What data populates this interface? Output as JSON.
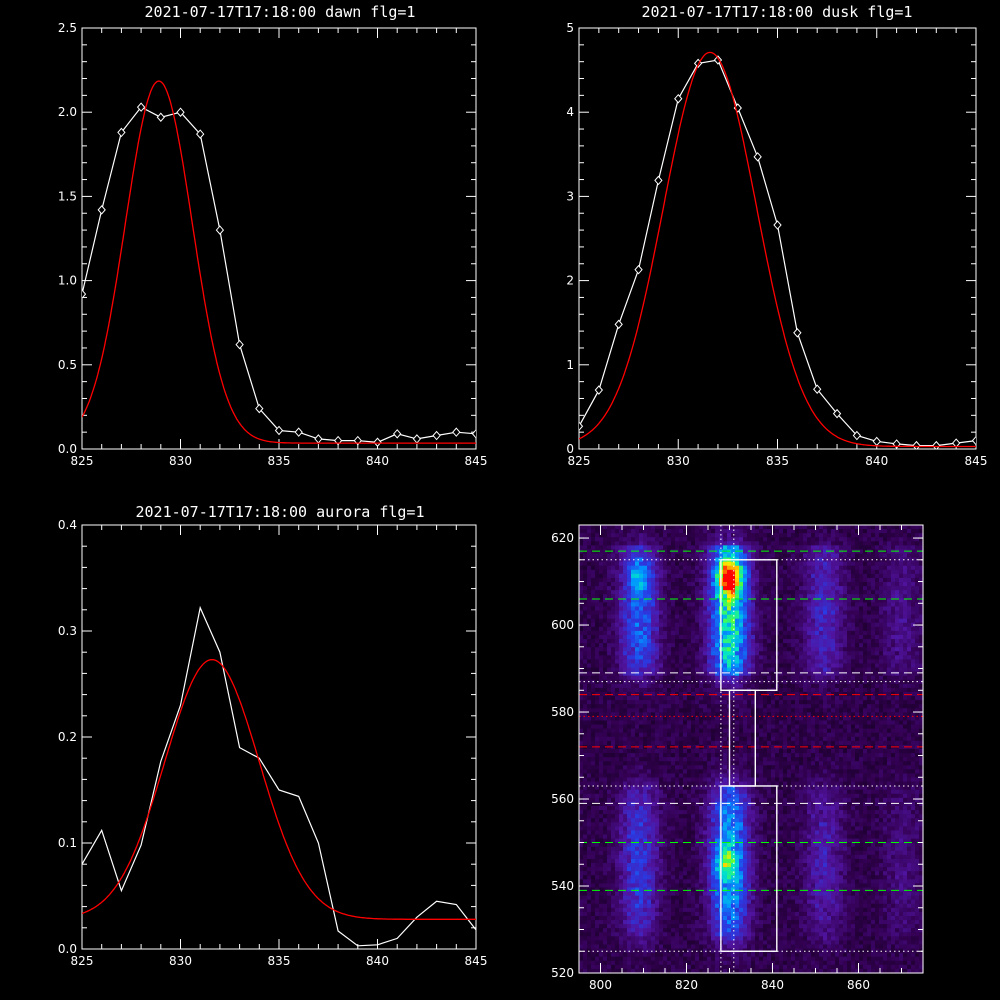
{
  "chart_data": [
    {
      "id": "dawn",
      "type": "line",
      "title": "2021-07-17T17:18:00 dawn flg=1",
      "xlim": [
        825,
        845
      ],
      "ylim": [
        0,
        2.5
      ],
      "xticks": [
        "825",
        "830",
        "835",
        "840",
        "845"
      ],
      "yticks": [
        "0.0",
        "0.5",
        "1.0",
        "1.5",
        "2.0",
        "2.5"
      ],
      "series": [
        {
          "marker": "diamond",
          "color": "#ffffff",
          "x": [
            825,
            826,
            827,
            828,
            829,
            830,
            831,
            832,
            833,
            834,
            835,
            836,
            837,
            838,
            839,
            840,
            841,
            842,
            843,
            844,
            845
          ],
          "y": [
            0.92,
            1.42,
            1.88,
            2.03,
            1.97,
            2.0,
            1.87,
            1.3,
            0.62,
            0.24,
            0.11,
            0.1,
            0.06,
            0.05,
            0.05,
            0.04,
            0.09,
            0.06,
            0.08,
            0.1,
            0.09
          ]
        },
        {
          "color": "#ff0000",
          "fit": {
            "amp": 2.15,
            "center": 828.9,
            "sigma": 1.7,
            "offset": 0.035
          }
        }
      ]
    },
    {
      "id": "dusk",
      "type": "line",
      "title": "2021-07-17T17:18:00 dusk flg=1",
      "xlim": [
        825,
        845
      ],
      "ylim": [
        0,
        5
      ],
      "xticks": [
        "825",
        "830",
        "835",
        "840",
        "845"
      ],
      "yticks": [
        "0",
        "1",
        "2",
        "3",
        "4",
        "5"
      ],
      "series": [
        {
          "marker": "diamond",
          "color": "#ffffff",
          "x": [
            825,
            826,
            827,
            828,
            829,
            830,
            831,
            832,
            833,
            834,
            835,
            836,
            837,
            838,
            839,
            840,
            841,
            842,
            843,
            844,
            845
          ],
          "y": [
            0.27,
            0.7,
            1.48,
            2.13,
            3.19,
            4.16,
            4.58,
            4.62,
            4.05,
            3.47,
            2.66,
            1.38,
            0.71,
            0.42,
            0.16,
            0.09,
            0.06,
            0.04,
            0.04,
            0.07,
            0.1
          ]
        },
        {
          "color": "#ff0000",
          "fit": {
            "amp": 4.68,
            "center": 831.6,
            "sigma": 2.35,
            "offset": 0.03
          }
        }
      ]
    },
    {
      "id": "aurora",
      "type": "line",
      "title": "2021-07-17T17:18:00 aurora flg=1",
      "xlim": [
        825,
        845
      ],
      "ylim": [
        0,
        0.4
      ],
      "xticks": [
        "825",
        "830",
        "835",
        "840",
        "845"
      ],
      "yticks": [
        "0.0",
        "0.1",
        "0.2",
        "0.3",
        "0.4"
      ],
      "series": [
        {
          "color": "#ffffff",
          "x": [
            825,
            826,
            827,
            828,
            829,
            830,
            831,
            832,
            833,
            834,
            835,
            836,
            837,
            838,
            839,
            840,
            841,
            842,
            843,
            844,
            845
          ],
          "y": [
            0.08,
            0.112,
            0.055,
            0.098,
            0.177,
            0.23,
            0.322,
            0.28,
            0.19,
            0.18,
            0.15,
            0.144,
            0.1,
            0.017,
            0.003,
            0.004,
            0.01,
            0.03,
            0.045,
            0.042,
            0.018
          ]
        },
        {
          "color": "#ff0000",
          "fit": {
            "amp": 0.245,
            "center": 831.6,
            "sigma": 2.4,
            "offset": 0.028
          }
        }
      ]
    },
    {
      "id": "image",
      "type": "heatmap",
      "xlim": [
        795,
        875
      ],
      "ylim": [
        520,
        623
      ],
      "xticks": [
        "800",
        "820",
        "840",
        "860"
      ],
      "yticks": [
        "520",
        "540",
        "560",
        "580",
        "600",
        "620"
      ],
      "columns_centers_x": [
        809,
        830,
        852,
        870
      ],
      "column_strength": [
        0.55,
        1.0,
        0.35,
        0.18
      ],
      "upper_band_y": [
        588,
        618
      ],
      "lower_band_y": [
        528,
        563
      ],
      "peak": {
        "x": 830,
        "y": 611
      },
      "boxes": [
        {
          "x": [
            828,
            841
          ],
          "y": [
            585,
            615
          ]
        },
        {
          "x": [
            830,
            836
          ],
          "y": [
            563,
            585
          ]
        },
        {
          "x": [
            828,
            841
          ],
          "y": [
            525,
            563
          ]
        }
      ],
      "vlines_dotted": [
        828,
        831
      ],
      "hlines": [
        {
          "y": 617,
          "color": "#00ff00",
          "style": "dashed"
        },
        {
          "y": 615,
          "color": "#ffffff",
          "style": "dotted"
        },
        {
          "y": 606,
          "color": "#00ff00",
          "style": "dashed"
        },
        {
          "y": 589,
          "color": "#ffffff",
          "style": "dashed"
        },
        {
          "y": 587,
          "color": "#ffffff",
          "style": "dotted"
        },
        {
          "y": 584,
          "color": "#ff0000",
          "style": "dashed"
        },
        {
          "y": 579,
          "color": "#ff0000",
          "style": "dotted"
        },
        {
          "y": 572,
          "color": "#ff0000",
          "style": "dashed"
        },
        {
          "y": 563,
          "color": "#ffffff",
          "style": "dotted"
        },
        {
          "y": 559,
          "color": "#ffffff",
          "style": "dashed"
        },
        {
          "y": 550,
          "color": "#00ff00",
          "style": "dashed"
        },
        {
          "y": 539,
          "color": "#00ff00",
          "style": "dashed"
        },
        {
          "y": 525,
          "color": "#ffffff",
          "style": "dotted"
        }
      ]
    }
  ]
}
